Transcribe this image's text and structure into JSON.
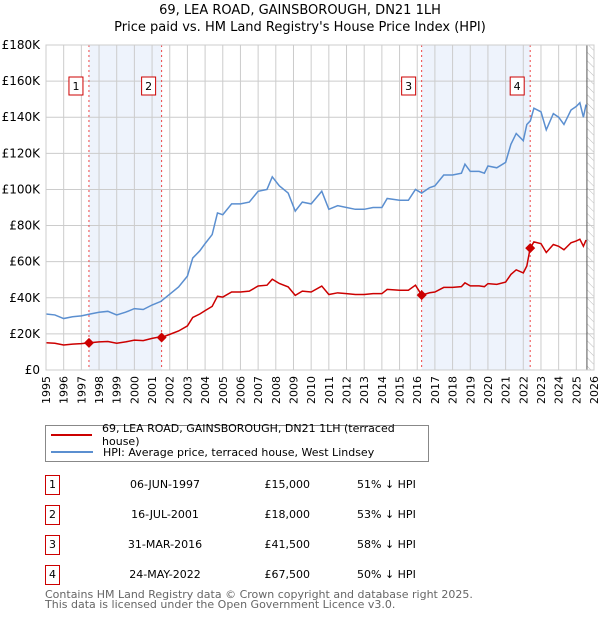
{
  "title": "69, LEA ROAD, GAINSBOROUGH, DN21 1LH",
  "subtitle": "Price paid vs. HM Land Registry's House Price Index (HPI)",
  "chart_data": {
    "type": "line",
    "xlim": [
      1995,
      2026
    ],
    "ylim": [
      0,
      180000
    ],
    "yticks": [
      0,
      20000,
      40000,
      60000,
      80000,
      100000,
      120000,
      140000,
      160000,
      180000
    ],
    "ytick_labels": [
      "£0",
      "£20K",
      "£40K",
      "£60K",
      "£80K",
      "£100K",
      "£120K",
      "£140K",
      "£160K",
      "£180K"
    ],
    "xticks": [
      1995,
      1996,
      1997,
      1998,
      1999,
      2000,
      2001,
      2002,
      2003,
      2004,
      2005,
      2006,
      2007,
      2008,
      2009,
      2010,
      2011,
      2012,
      2013,
      2014,
      2015,
      2016,
      2017,
      2018,
      2019,
      2020,
      2021,
      2022,
      2023,
      2024,
      2025,
      2026
    ],
    "grid": true,
    "future_hatch_from": 2025.6,
    "colors": {
      "property": "#cc0000",
      "hpi": "#5b8fd0",
      "shade": "#eef3fc",
      "marker_line": "#ee4444"
    },
    "hpi_series": {
      "name": "HPI: Average price, terraced house, West Lindsey",
      "x": [
        1995,
        1995.5,
        1996,
        1996.5,
        1997,
        1997.5,
        1998,
        1998.5,
        1999,
        1999.5,
        2000,
        2000.5,
        2001,
        2001.5,
        2002,
        2002.5,
        2003,
        2003.3,
        2003.7,
        2004,
        2004.4,
        2004.7,
        2005,
        2005.5,
        2006,
        2006.5,
        2007,
        2007.5,
        2007.8,
        2008.2,
        2008.7,
        2009.1,
        2009.5,
        2010,
        2010.6,
        2011,
        2011.5,
        2012,
        2012.5,
        2013,
        2013.5,
        2014,
        2014.3,
        2015,
        2015.5,
        2015.9,
        2016.25,
        2016.7,
        2017,
        2017.5,
        2018,
        2018.5,
        2018.7,
        2019,
        2019.5,
        2019.8,
        2020,
        2020.5,
        2021,
        2021.3,
        2021.6,
        2022,
        2022.2,
        2022.4,
        2022.6,
        2023,
        2023.3,
        2023.7,
        2024,
        2024.3,
        2024.7,
        2025,
        2025.2,
        2025.4,
        2025.55
      ],
      "y": [
        31000,
        30500,
        28500,
        29500,
        30000,
        31000,
        32000,
        32500,
        30500,
        32000,
        34000,
        33500,
        36000,
        38000,
        42000,
        46000,
        52000,
        62000,
        66000,
        70000,
        75000,
        87000,
        86000,
        92000,
        92000,
        93000,
        99000,
        100000,
        107000,
        102000,
        98000,
        88000,
        93000,
        92000,
        99000,
        89000,
        91000,
        90000,
        89000,
        89000,
        90000,
        90000,
        95000,
        94000,
        94000,
        100000,
        98000,
        101000,
        102000,
        108000,
        108000,
        109000,
        114000,
        110000,
        110000,
        109000,
        113000,
        112000,
        115000,
        125000,
        131000,
        127000,
        136000,
        138000,
        145000,
        143000,
        133000,
        142000,
        140000,
        136000,
        144000,
        146000,
        148000,
        140000,
        147000
      ]
    },
    "property_series": {
      "name": "69, LEA ROAD, GAINSBOROUGH, DN21 1LH (terraced house)"
    },
    "sales": [
      {
        "label": "1",
        "x": 1997.43,
        "price": 15000
      },
      {
        "label": "2",
        "x": 2001.54,
        "price": 18000
      },
      {
        "label": "3",
        "x": 2016.25,
        "price": 41500
      },
      {
        "label": "4",
        "x": 2022.39,
        "price": 67500
      }
    ]
  },
  "legend": [
    {
      "label": "69, LEA ROAD, GAINSBOROUGH, DN21 1LH (terraced house)",
      "color": "#cc0000"
    },
    {
      "label": "HPI: Average price, terraced house, West Lindsey",
      "color": "#5b8fd0"
    }
  ],
  "table": [
    {
      "num": "1",
      "date": "06-JUN-1997",
      "price": "£15,000",
      "hpi": "51% ↓ HPI"
    },
    {
      "num": "2",
      "date": "16-JUL-2001",
      "price": "£18,000",
      "hpi": "53% ↓ HPI"
    },
    {
      "num": "3",
      "date": "31-MAR-2016",
      "price": "£41,500",
      "hpi": "58% ↓ HPI"
    },
    {
      "num": "4",
      "date": "24-MAY-2022",
      "price": "£67,500",
      "hpi": "50% ↓ HPI"
    }
  ],
  "footer": [
    "Contains HM Land Registry data © Crown copyright and database right 2025.",
    "This data is licensed under the Open Government Licence v3.0."
  ]
}
